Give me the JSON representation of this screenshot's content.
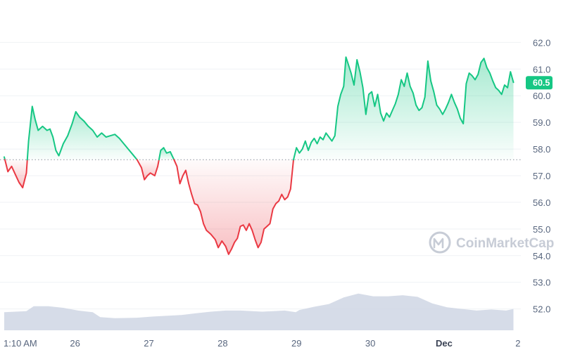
{
  "watermark": {
    "text": "CoinMarketCap",
    "icon": "coinmarketcap-logo-icon"
  },
  "colors": {
    "up": "#16c784",
    "down": "#ea3943",
    "volume": "#cfd6e4",
    "grid": "#eff2f5",
    "baseline": "#8a919e"
  },
  "price_label": "60.5",
  "chart_data": {
    "type": "line",
    "title": "",
    "xlabel": "",
    "ylabel": "",
    "ylim": [
      51.2,
      62.8
    ],
    "y_ticks": [
      "52.0",
      "53.0",
      "54.0",
      "55.0",
      "56.0",
      "57.0",
      "58.0",
      "59.0",
      "60.0",
      "61.0",
      "62.0"
    ],
    "x_ticks": [
      {
        "label": "1:10 AM",
        "x": 0
      },
      {
        "label": "26",
        "x": 0.96
      },
      {
        "label": "27",
        "x": 1.96
      },
      {
        "label": "28",
        "x": 2.96
      },
      {
        "label": "29",
        "x": 3.96
      },
      {
        "label": "30",
        "x": 4.96
      },
      {
        "label": "Dec",
        "x": 5.96
      },
      {
        "label": "2",
        "x": 6.96
      }
    ],
    "x_range": [
      0,
      7.0
    ],
    "baseline_value": 57.6,
    "current_value": 60.5,
    "price": [
      [
        0.0,
        57.7
      ],
      [
        0.05,
        57.15
      ],
      [
        0.1,
        57.35
      ],
      [
        0.15,
        57.05
      ],
      [
        0.2,
        56.75
      ],
      [
        0.25,
        56.55
      ],
      [
        0.3,
        57.1
      ],
      [
        0.33,
        58.3
      ],
      [
        0.38,
        59.6
      ],
      [
        0.42,
        59.1
      ],
      [
        0.46,
        58.7
      ],
      [
        0.52,
        58.85
      ],
      [
        0.58,
        58.7
      ],
      [
        0.62,
        58.75
      ],
      [
        0.66,
        58.45
      ],
      [
        0.7,
        57.95
      ],
      [
        0.74,
        57.75
      ],
      [
        0.8,
        58.2
      ],
      [
        0.86,
        58.5
      ],
      [
        0.92,
        58.95
      ],
      [
        0.97,
        59.4
      ],
      [
        1.02,
        59.2
      ],
      [
        1.08,
        59.05
      ],
      [
        1.14,
        58.85
      ],
      [
        1.2,
        58.7
      ],
      [
        1.26,
        58.45
      ],
      [
        1.32,
        58.6
      ],
      [
        1.38,
        58.45
      ],
      [
        1.44,
        58.5
      ],
      [
        1.5,
        58.55
      ],
      [
        1.56,
        58.4
      ],
      [
        1.62,
        58.2
      ],
      [
        1.68,
        58.0
      ],
      [
        1.74,
        57.8
      ],
      [
        1.8,
        57.6
      ],
      [
        1.86,
        57.3
      ],
      [
        1.9,
        56.85
      ],
      [
        1.94,
        57.0
      ],
      [
        1.98,
        57.1
      ],
      [
        2.04,
        57.0
      ],
      [
        2.08,
        57.35
      ],
      [
        2.12,
        57.95
      ],
      [
        2.16,
        58.05
      ],
      [
        2.2,
        57.85
      ],
      [
        2.25,
        57.9
      ],
      [
        2.3,
        57.6
      ],
      [
        2.34,
        57.35
      ],
      [
        2.38,
        56.7
      ],
      [
        2.42,
        57.0
      ],
      [
        2.46,
        57.2
      ],
      [
        2.5,
        56.7
      ],
      [
        2.54,
        56.3
      ],
      [
        2.58,
        55.95
      ],
      [
        2.62,
        55.9
      ],
      [
        2.66,
        55.65
      ],
      [
        2.7,
        55.2
      ],
      [
        2.74,
        54.95
      ],
      [
        2.8,
        54.8
      ],
      [
        2.86,
        54.6
      ],
      [
        2.9,
        54.3
      ],
      [
        2.95,
        54.55
      ],
      [
        3.0,
        54.35
      ],
      [
        3.04,
        54.05
      ],
      [
        3.08,
        54.25
      ],
      [
        3.12,
        54.5
      ],
      [
        3.16,
        54.65
      ],
      [
        3.2,
        55.1
      ],
      [
        3.24,
        55.15
      ],
      [
        3.28,
        54.95
      ],
      [
        3.32,
        55.2
      ],
      [
        3.36,
        54.95
      ],
      [
        3.4,
        54.6
      ],
      [
        3.44,
        54.3
      ],
      [
        3.48,
        54.5
      ],
      [
        3.52,
        55.0
      ],
      [
        3.56,
        55.1
      ],
      [
        3.6,
        55.2
      ],
      [
        3.64,
        55.75
      ],
      [
        3.68,
        55.95
      ],
      [
        3.72,
        56.05
      ],
      [
        3.76,
        56.3
      ],
      [
        3.8,
        56.1
      ],
      [
        3.84,
        56.2
      ],
      [
        3.88,
        56.5
      ],
      [
        3.92,
        57.6
      ],
      [
        3.96,
        58.05
      ],
      [
        4.0,
        57.85
      ],
      [
        4.04,
        58.0
      ],
      [
        4.08,
        58.3
      ],
      [
        4.12,
        57.95
      ],
      [
        4.16,
        58.25
      ],
      [
        4.2,
        58.4
      ],
      [
        4.24,
        58.2
      ],
      [
        4.28,
        58.45
      ],
      [
        4.32,
        58.35
      ],
      [
        4.36,
        58.6
      ],
      [
        4.4,
        58.45
      ],
      [
        4.44,
        58.3
      ],
      [
        4.48,
        58.5
      ],
      [
        4.52,
        59.6
      ],
      [
        4.56,
        60.05
      ],
      [
        4.6,
        60.35
      ],
      [
        4.63,
        61.45
      ],
      [
        4.66,
        61.2
      ],
      [
        4.7,
        60.85
      ],
      [
        4.74,
        60.4
      ],
      [
        4.78,
        61.35
      ],
      [
        4.82,
        60.9
      ],
      [
        4.86,
        60.3
      ],
      [
        4.9,
        59.3
      ],
      [
        4.94,
        60.05
      ],
      [
        4.98,
        60.15
      ],
      [
        5.02,
        59.6
      ],
      [
        5.06,
        60.05
      ],
      [
        5.1,
        59.35
      ],
      [
        5.14,
        59.05
      ],
      [
        5.18,
        59.35
      ],
      [
        5.22,
        59.2
      ],
      [
        5.26,
        59.45
      ],
      [
        5.3,
        59.7
      ],
      [
        5.34,
        60.05
      ],
      [
        5.38,
        60.6
      ],
      [
        5.42,
        60.35
      ],
      [
        5.46,
        60.85
      ],
      [
        5.5,
        60.35
      ],
      [
        5.54,
        60.1
      ],
      [
        5.58,
        59.65
      ],
      [
        5.62,
        59.45
      ],
      [
        5.66,
        59.55
      ],
      [
        5.7,
        59.95
      ],
      [
        5.74,
        61.3
      ],
      [
        5.78,
        60.55
      ],
      [
        5.82,
        60.15
      ],
      [
        5.86,
        59.65
      ],
      [
        5.9,
        59.5
      ],
      [
        5.94,
        59.3
      ],
      [
        5.98,
        59.5
      ],
      [
        6.02,
        59.75
      ],
      [
        6.06,
        60.05
      ],
      [
        6.1,
        59.75
      ],
      [
        6.14,
        59.5
      ],
      [
        6.18,
        59.15
      ],
      [
        6.22,
        58.95
      ],
      [
        6.26,
        60.45
      ],
      [
        6.3,
        60.85
      ],
      [
        6.34,
        60.75
      ],
      [
        6.38,
        60.6
      ],
      [
        6.42,
        60.8
      ],
      [
        6.46,
        61.25
      ],
      [
        6.5,
        61.4
      ],
      [
        6.54,
        61.05
      ],
      [
        6.58,
        60.85
      ],
      [
        6.62,
        60.55
      ],
      [
        6.66,
        60.3
      ],
      [
        6.7,
        60.2
      ],
      [
        6.74,
        60.05
      ],
      [
        6.78,
        60.4
      ],
      [
        6.82,
        60.3
      ],
      [
        6.86,
        60.9
      ],
      [
        6.9,
        60.5
      ]
    ],
    "volume": [
      [
        0.0,
        0.33
      ],
      [
        0.3,
        0.35
      ],
      [
        0.4,
        0.44
      ],
      [
        0.6,
        0.44
      ],
      [
        0.8,
        0.41
      ],
      [
        1.0,
        0.36
      ],
      [
        1.2,
        0.33
      ],
      [
        1.3,
        0.24
      ],
      [
        1.5,
        0.22
      ],
      [
        1.8,
        0.23
      ],
      [
        2.0,
        0.25
      ],
      [
        2.4,
        0.28
      ],
      [
        2.6,
        0.31
      ],
      [
        2.8,
        0.34
      ],
      [
        3.0,
        0.36
      ],
      [
        3.2,
        0.36
      ],
      [
        3.5,
        0.34
      ],
      [
        3.8,
        0.36
      ],
      [
        3.95,
        0.33
      ],
      [
        4.0,
        0.37
      ],
      [
        4.2,
        0.43
      ],
      [
        4.4,
        0.48
      ],
      [
        4.6,
        0.6
      ],
      [
        4.8,
        0.67
      ],
      [
        5.0,
        0.62
      ],
      [
        5.2,
        0.62
      ],
      [
        5.4,
        0.64
      ],
      [
        5.6,
        0.61
      ],
      [
        5.8,
        0.49
      ],
      [
        6.0,
        0.42
      ],
      [
        6.2,
        0.39
      ],
      [
        6.4,
        0.36
      ],
      [
        6.6,
        0.38
      ],
      [
        6.8,
        0.36
      ],
      [
        6.9,
        0.39
      ]
    ]
  }
}
